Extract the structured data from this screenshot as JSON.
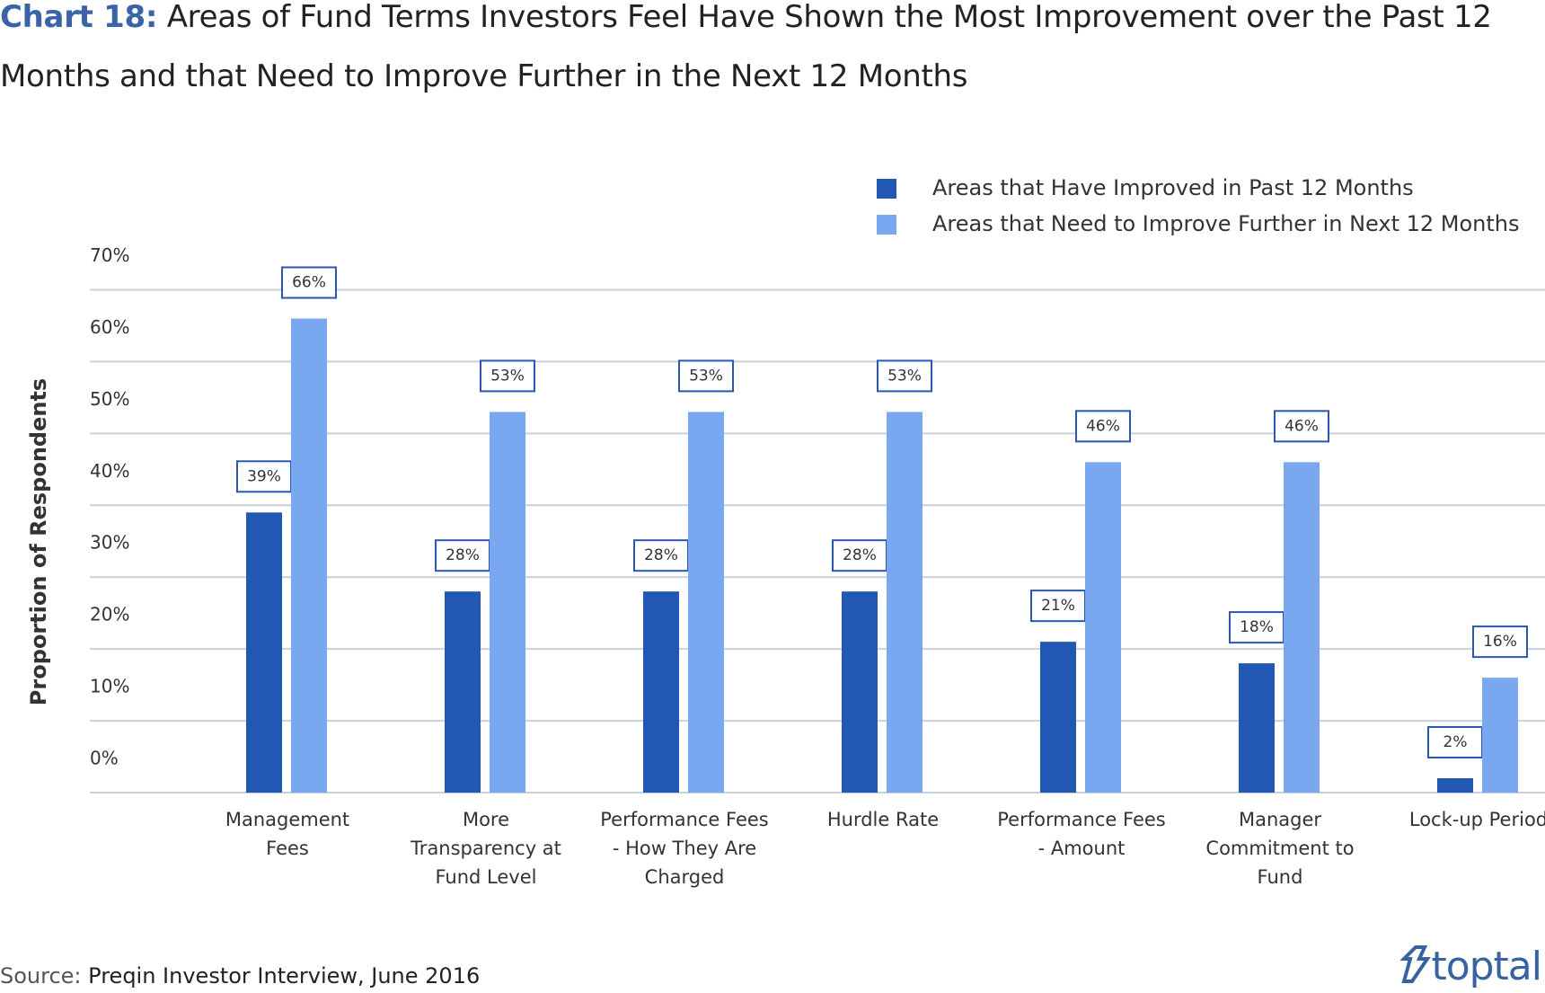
{
  "chart_data": {
    "type": "bar",
    "title_label": "Chart 18:",
    "title": "Areas of Fund Terms Investors Feel Have Shown the Most Improvement over the Past 12 Months and that Need to Improve Further in the Next 12 Months",
    "y_label": "Proportion of Respondents",
    "categories": [
      "Management Fees",
      "More Transparency at Fund Level",
      "Performance Fees - How They Are Charged",
      "Hurdle Rate",
      "Performance Fees - Amount",
      "Manager Commitment to Fund",
      "Lock-up Period"
    ],
    "series": [
      {
        "name": "Areas that Have Improved in Past 12 Months",
        "color": "#2257b3",
        "values": [
          39,
          28,
          28,
          28,
          21,
          18,
          2
        ],
        "value_labels": [
          "39%",
          "28%",
          "28%",
          "28%",
          "21%",
          "18%",
          "2%"
        ]
      },
      {
        "name": "Areas that Need to Improve Further in Next 12 Months",
        "color": "#79a8f0",
        "values": [
          66,
          53,
          53,
          53,
          46,
          46,
          16
        ],
        "value_labels": [
          "66%",
          "53%",
          "53%",
          "53%",
          "46%",
          "46%",
          "16%"
        ]
      }
    ],
    "ylim": [
      0,
      70
    ],
    "yticks": [
      {
        "value": 0,
        "label": "0%"
      },
      {
        "value": 10,
        "label": "10%"
      },
      {
        "value": 20,
        "label": "20%"
      },
      {
        "value": 30,
        "label": "30%"
      },
      {
        "value": 40,
        "label": "40%"
      },
      {
        "value": 50,
        "label": "50%"
      },
      {
        "value": 60,
        "label": "60%"
      },
      {
        "value": 70,
        "label": "70%"
      }
    ],
    "grid": true,
    "legend": "top-right",
    "source_label": "Source:",
    "source": "Preqin Investor Interview, June 2016",
    "logo": "toptal"
  }
}
